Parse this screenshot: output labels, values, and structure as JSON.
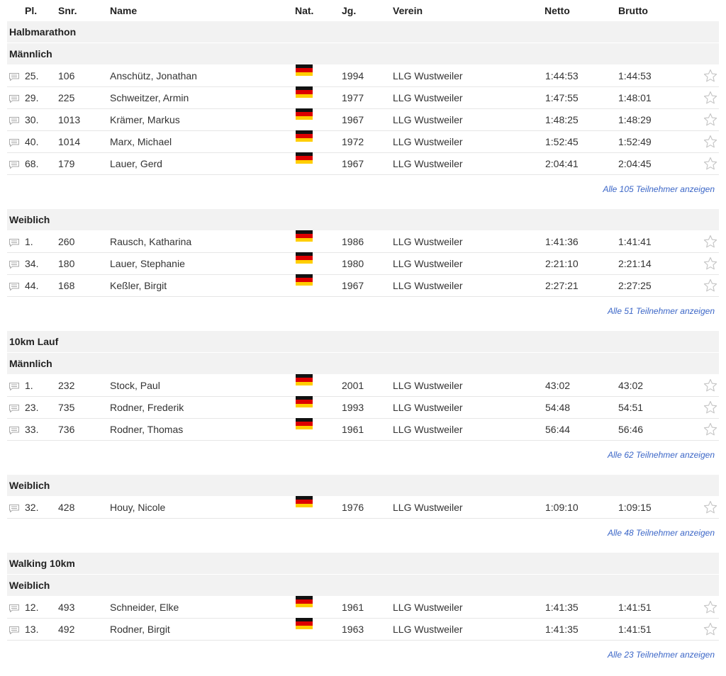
{
  "headers": {
    "pl": "Pl.",
    "snr": "Snr.",
    "name": "Name",
    "nat": "Nat.",
    "jg": "Jg.",
    "verein": "Verein",
    "netto": "Netto",
    "brutto": "Brutto"
  },
  "flag_colors": {
    "black": "#111111",
    "red": "#dd0000",
    "gold": "#ffce00"
  },
  "icons": {
    "comment": "comment-icon",
    "star": "star-icon"
  },
  "races": [
    {
      "title": "Halbmarathon",
      "groups": [
        {
          "label": "Männlich",
          "more": "Alle 105 Teilnehmer anzeigen",
          "rows": [
            {
              "pl": "25.",
              "snr": "106",
              "name": "Anschütz, Jonathan",
              "jg": "1994",
              "verein": "LLG Wustweiler",
              "netto": "1:44:53",
              "brutto": "1:44:53"
            },
            {
              "pl": "29.",
              "snr": "225",
              "name": "Schweitzer, Armin",
              "jg": "1977",
              "verein": "LLG Wustweiler",
              "netto": "1:47:55",
              "brutto": "1:48:01"
            },
            {
              "pl": "30.",
              "snr": "1013",
              "name": "Krämer, Markus",
              "jg": "1967",
              "verein": "LLG Wustweiler",
              "netto": "1:48:25",
              "brutto": "1:48:29"
            },
            {
              "pl": "40.",
              "snr": "1014",
              "name": "Marx, Michael",
              "jg": "1972",
              "verein": "LLG Wustweiler",
              "netto": "1:52:45",
              "brutto": "1:52:49"
            },
            {
              "pl": "68.",
              "snr": "179",
              "name": "Lauer, Gerd",
              "jg": "1967",
              "verein": "LLG Wustweiler",
              "netto": "2:04:41",
              "brutto": "2:04:45"
            }
          ]
        },
        {
          "label": "Weiblich",
          "more": "Alle 51 Teilnehmer anzeigen",
          "rows": [
            {
              "pl": "1.",
              "snr": "260",
              "name": "Rausch, Katharina",
              "jg": "1986",
              "verein": "LLG Wustweiler",
              "netto": "1:41:36",
              "brutto": "1:41:41"
            },
            {
              "pl": "34.",
              "snr": "180",
              "name": "Lauer, Stephanie",
              "jg": "1980",
              "verein": "LLG Wustweiler",
              "netto": "2:21:10",
              "brutto": "2:21:14"
            },
            {
              "pl": "44.",
              "snr": "168",
              "name": "Keßler, Birgit",
              "jg": "1967",
              "verein": "LLG Wustweiler",
              "netto": "2:27:21",
              "brutto": "2:27:25"
            }
          ]
        }
      ]
    },
    {
      "title": "10km Lauf",
      "groups": [
        {
          "label": "Männlich",
          "more": "Alle 62 Teilnehmer anzeigen",
          "rows": [
            {
              "pl": "1.",
              "snr": "232",
              "name": "Stock, Paul",
              "jg": "2001",
              "verein": "LLG Wustweiler",
              "netto": "43:02",
              "brutto": "43:02"
            },
            {
              "pl": "23.",
              "snr": "735",
              "name": "Rodner, Frederik",
              "jg": "1993",
              "verein": "LLG Wustweiler",
              "netto": "54:48",
              "brutto": "54:51"
            },
            {
              "pl": "33.",
              "snr": "736",
              "name": "Rodner, Thomas",
              "jg": "1961",
              "verein": "LLG Wustweiler",
              "netto": "56:44",
              "brutto": "56:46"
            }
          ]
        },
        {
          "label": "Weiblich",
          "more": "Alle 48 Teilnehmer anzeigen",
          "rows": [
            {
              "pl": "32.",
              "snr": "428",
              "name": "Houy, Nicole",
              "jg": "1976",
              "verein": "LLG Wustweiler",
              "netto": "1:09:10",
              "brutto": "1:09:15"
            }
          ]
        }
      ]
    },
    {
      "title": "Walking 10km",
      "groups": [
        {
          "label": "Weiblich",
          "more": "Alle 23 Teilnehmer anzeigen",
          "rows": [
            {
              "pl": "12.",
              "snr": "493",
              "name": "Schneider, Elke",
              "jg": "1961",
              "verein": "LLG Wustweiler",
              "netto": "1:41:35",
              "brutto": "1:41:51"
            },
            {
              "pl": "13.",
              "snr": "492",
              "name": "Rodner, Birgit",
              "jg": "1963",
              "verein": "LLG Wustweiler",
              "netto": "1:41:35",
              "brutto": "1:41:51"
            }
          ]
        }
      ]
    }
  ]
}
